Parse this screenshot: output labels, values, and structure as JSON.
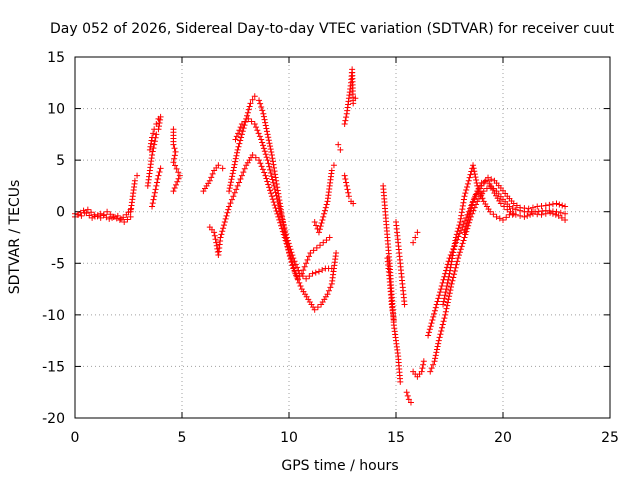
{
  "chart_data": {
    "type": "scatter",
    "title": "Day 052 of 2026, Sidereal Day-to-day VTEC variation (SDTVAR) for receiver cuut",
    "xlabel": "GPS time / hours",
    "ylabel": "SDTVAR / TECUs",
    "xlim": [
      0,
      25
    ],
    "ylim": [
      -20,
      15
    ],
    "xticks": [
      "0",
      "5",
      "10",
      "15",
      "20",
      "25"
    ],
    "yticks": [
      "-20",
      "-15",
      "-10",
      "-5",
      "0",
      "5",
      "10",
      "15"
    ],
    "grid": true,
    "marker": "+",
    "color": "#ff0000",
    "series": [
      {
        "name": "arc-1",
        "points": [
          [
            0.0,
            -0.2
          ],
          [
            0.3,
            -0.4
          ],
          [
            0.6,
            0.2
          ],
          [
            0.9,
            -0.3
          ],
          [
            1.2,
            -0.6
          ],
          [
            1.5,
            0.0
          ],
          [
            1.8,
            -0.5
          ],
          [
            2.1,
            -0.8
          ],
          [
            2.4,
            -0.3
          ],
          [
            2.6,
            0.2
          ]
        ]
      },
      {
        "name": "arc-2",
        "points": [
          [
            0.0,
            -0.5
          ],
          [
            0.4,
            0.1
          ],
          [
            0.8,
            -0.6
          ],
          [
            1.2,
            -0.2
          ],
          [
            1.6,
            -0.7
          ],
          [
            2.0,
            -0.4
          ],
          [
            2.3,
            -1.0
          ],
          [
            2.6,
            -0.5
          ]
        ]
      },
      {
        "name": "arc-3",
        "points": [
          [
            2.6,
            0.0
          ],
          [
            2.7,
            1.5
          ],
          [
            2.8,
            3.0
          ],
          [
            2.9,
            3.5
          ]
        ]
      },
      {
        "name": "arc-4",
        "points": [
          [
            3.4,
            2.5
          ],
          [
            3.5,
            4.0
          ],
          [
            3.6,
            5.5
          ],
          [
            3.7,
            6.5
          ],
          [
            3.8,
            7.5
          ],
          [
            3.9,
            8.0
          ],
          [
            4.0,
            9.2
          ]
        ]
      },
      {
        "name": "arc-5",
        "points": [
          [
            3.5,
            6.0
          ],
          [
            3.6,
            7.2
          ],
          [
            3.7,
            8.0
          ],
          [
            3.8,
            8.5
          ],
          [
            3.9,
            9.0
          ]
        ]
      },
      {
        "name": "arc-6",
        "points": [
          [
            3.6,
            0.5
          ],
          [
            3.7,
            1.5
          ],
          [
            3.8,
            2.5
          ],
          [
            3.9,
            3.5
          ],
          [
            4.0,
            4.2
          ]
        ]
      },
      {
        "name": "arc-7",
        "points": [
          [
            4.6,
            8.0
          ],
          [
            4.6,
            6.5
          ],
          [
            4.7,
            5.8
          ],
          [
            4.6,
            4.8
          ],
          [
            4.9,
            3.5
          ],
          [
            4.6,
            2.0
          ]
        ]
      },
      {
        "name": "arc-8",
        "points": [
          [
            6.0,
            2.0
          ],
          [
            6.3,
            3.0
          ],
          [
            6.5,
            4.0
          ],
          [
            6.7,
            4.5
          ],
          [
            6.9,
            4.2
          ]
        ]
      },
      {
        "name": "arc-9",
        "points": [
          [
            6.3,
            -1.5
          ],
          [
            6.5,
            -2.0
          ],
          [
            6.6,
            -3.0
          ],
          [
            6.7,
            -4.2
          ],
          [
            6.8,
            -2.5
          ],
          [
            7.0,
            -1.0
          ],
          [
            7.2,
            0.5
          ],
          [
            7.4,
            1.5
          ],
          [
            7.6,
            2.5
          ],
          [
            7.8,
            3.5
          ],
          [
            8.0,
            4.5
          ],
          [
            8.3,
            5.5
          ],
          [
            8.6,
            5.0
          ],
          [
            8.9,
            3.5
          ],
          [
            9.2,
            1.5
          ],
          [
            9.5,
            -0.5
          ],
          [
            9.8,
            -2.5
          ],
          [
            10.1,
            -4.5
          ],
          [
            10.3,
            -6.0
          ],
          [
            10.6,
            -7.5
          ],
          [
            10.9,
            -8.5
          ],
          [
            11.2,
            -9.5
          ],
          [
            11.5,
            -9.0
          ],
          [
            11.8,
            -8.0
          ],
          [
            12.0,
            -7.0
          ],
          [
            12.2,
            -4.0
          ]
        ]
      },
      {
        "name": "arc-10",
        "points": [
          [
            7.2,
            2.0
          ],
          [
            7.4,
            4.0
          ],
          [
            7.6,
            6.0
          ],
          [
            7.8,
            7.5
          ],
          [
            8.0,
            9.0
          ],
          [
            8.2,
            10.5
          ],
          [
            8.4,
            11.2
          ],
          [
            8.6,
            10.8
          ],
          [
            8.8,
            9.5
          ],
          [
            9.0,
            7.5
          ],
          [
            9.2,
            5.5
          ],
          [
            9.4,
            3.0
          ],
          [
            9.6,
            0.5
          ],
          [
            9.8,
            -2.0
          ],
          [
            10.0,
            -4.0
          ],
          [
            10.2,
            -5.5
          ],
          [
            10.4,
            -6.5
          ],
          [
            10.6,
            -6.0
          ],
          [
            10.8,
            -5.0
          ],
          [
            11.0,
            -4.0
          ],
          [
            11.3,
            -3.5
          ],
          [
            11.6,
            -3.0
          ],
          [
            11.9,
            -2.5
          ]
        ]
      },
      {
        "name": "arc-11",
        "points": [
          [
            7.5,
            7.0
          ],
          [
            7.8,
            8.5
          ],
          [
            8.1,
            9.0
          ],
          [
            8.4,
            8.5
          ],
          [
            8.7,
            7.0
          ],
          [
            9.0,
            5.0
          ],
          [
            9.3,
            2.5
          ],
          [
            9.6,
            0.0
          ],
          [
            9.9,
            -2.5
          ],
          [
            10.2,
            -4.5
          ],
          [
            10.5,
            -6.0
          ],
          [
            10.8,
            -6.5
          ],
          [
            11.1,
            -6.0
          ],
          [
            11.4,
            -5.8
          ],
          [
            11.7,
            -5.5
          ],
          [
            12.0,
            -5.5
          ]
        ]
      },
      {
        "name": "arc-12",
        "points": [
          [
            11.2,
            -1.0
          ],
          [
            11.4,
            -2.0
          ],
          [
            11.6,
            -0.5
          ],
          [
            11.8,
            1.0
          ],
          [
            11.9,
            2.5
          ],
          [
            12.0,
            4.0
          ],
          [
            12.1,
            4.5
          ]
        ]
      },
      {
        "name": "arc-13",
        "points": [
          [
            12.3,
            6.5
          ],
          [
            12.4,
            6.0
          ]
        ]
      },
      {
        "name": "arc-14",
        "points": [
          [
            12.6,
            3.5
          ],
          [
            12.7,
            2.5
          ],
          [
            12.8,
            1.5
          ],
          [
            12.9,
            1.0
          ],
          [
            13.0,
            0.8
          ]
        ]
      },
      {
        "name": "arc-15",
        "points": [
          [
            12.6,
            8.5
          ],
          [
            12.7,
            9.5
          ],
          [
            12.8,
            11.0
          ],
          [
            12.9,
            12.5
          ],
          [
            12.95,
            13.8
          ],
          [
            13.0,
            10.5
          ],
          [
            13.1,
            11.0
          ]
        ]
      },
      {
        "name": "arc-16",
        "points": [
          [
            14.4,
            2.5
          ],
          [
            14.5,
            0.0
          ],
          [
            14.6,
            -2.5
          ],
          [
            14.7,
            -5.0
          ],
          [
            14.8,
            -8.0
          ],
          [
            14.9,
            -11.0
          ],
          [
            15.0,
            -12.5
          ],
          [
            15.1,
            -14.0
          ],
          [
            15.2,
            -16.5
          ]
        ]
      },
      {
        "name": "arc-17",
        "points": [
          [
            14.6,
            -4.5
          ],
          [
            14.7,
            -6.5
          ],
          [
            14.8,
            -9.0
          ],
          [
            14.9,
            -10.5
          ]
        ]
      },
      {
        "name": "arc-18",
        "points": [
          [
            15.0,
            -1.0
          ],
          [
            15.1,
            -3.0
          ],
          [
            15.2,
            -5.0
          ],
          [
            15.3,
            -7.0
          ],
          [
            15.4,
            -9.0
          ]
        ]
      },
      {
        "name": "arc-19",
        "points": [
          [
            15.5,
            -17.5
          ],
          [
            15.6,
            -18.2
          ],
          [
            15.7,
            -18.5
          ]
        ]
      },
      {
        "name": "arc-20",
        "points": [
          [
            15.8,
            -3.0
          ],
          [
            15.9,
            -2.5
          ],
          [
            16.0,
            -2.0
          ]
        ]
      },
      {
        "name": "arc-21",
        "points": [
          [
            15.8,
            -15.5
          ],
          [
            16.0,
            -16.0
          ],
          [
            16.2,
            -15.5
          ],
          [
            16.3,
            -14.5
          ]
        ]
      },
      {
        "name": "arc-22",
        "points": [
          [
            16.6,
            -15.5
          ],
          [
            16.8,
            -14.5
          ],
          [
            17.0,
            -12.5
          ],
          [
            17.3,
            -10.0
          ],
          [
            17.6,
            -7.0
          ],
          [
            17.9,
            -4.5
          ],
          [
            18.2,
            -2.5
          ],
          [
            18.5,
            -0.5
          ],
          [
            18.8,
            1.0
          ],
          [
            19.1,
            2.0
          ],
          [
            19.4,
            2.5
          ],
          [
            19.7,
            2.0
          ],
          [
            20.0,
            1.2
          ],
          [
            20.3,
            0.5
          ],
          [
            20.6,
            0.2
          ],
          [
            21.0,
            0.0
          ],
          [
            21.5,
            0.0
          ],
          [
            22.0,
            0.1
          ],
          [
            22.5,
            0.0
          ],
          [
            22.9,
            -0.2
          ]
        ]
      },
      {
        "name": "arc-23",
        "points": [
          [
            16.5,
            -12.0
          ],
          [
            16.7,
            -10.5
          ],
          [
            16.9,
            -9.0
          ],
          [
            17.1,
            -7.5
          ],
          [
            17.3,
            -6.0
          ],
          [
            17.5,
            -4.5
          ],
          [
            17.8,
            -3.0
          ],
          [
            18.1,
            -1.5
          ],
          [
            18.4,
            0.0
          ],
          [
            18.7,
            1.5
          ],
          [
            19.0,
            2.5
          ],
          [
            19.3,
            3.3
          ],
          [
            19.6,
            3.0
          ],
          [
            19.9,
            2.3
          ],
          [
            20.2,
            1.5
          ],
          [
            20.5,
            0.8
          ],
          [
            20.8,
            0.4
          ],
          [
            21.2,
            0.3
          ],
          [
            21.6,
            0.5
          ],
          [
            22.0,
            0.6
          ],
          [
            22.5,
            0.8
          ],
          [
            22.9,
            0.5
          ]
        ]
      },
      {
        "name": "arc-24",
        "points": [
          [
            17.2,
            -9.0
          ],
          [
            17.5,
            -6.0
          ],
          [
            17.8,
            -2.5
          ],
          [
            18.0,
            -1.0
          ],
          [
            18.2,
            1.5
          ],
          [
            18.4,
            3.0
          ],
          [
            18.6,
            4.5
          ],
          [
            18.8,
            2.5
          ],
          [
            19.1,
            1.0
          ],
          [
            19.4,
            0.0
          ],
          [
            19.7,
            -0.5
          ],
          [
            20.0,
            -0.8
          ],
          [
            20.3,
            -0.3
          ],
          [
            20.6,
            -0.3
          ],
          [
            21.0,
            -0.5
          ],
          [
            21.4,
            -0.2
          ],
          [
            21.8,
            -0.3
          ],
          [
            22.2,
            -0.1
          ],
          [
            22.6,
            -0.4
          ],
          [
            22.9,
            -0.8
          ]
        ]
      },
      {
        "name": "arc-25",
        "points": [
          [
            18.2,
            -2.0
          ],
          [
            18.4,
            -0.5
          ],
          [
            18.6,
            1.0
          ],
          [
            18.8,
            2.0
          ],
          [
            19.0,
            2.8
          ],
          [
            19.3,
            3.0
          ],
          [
            19.6,
            1.8
          ],
          [
            19.9,
            0.8
          ],
          [
            20.2,
            0.2
          ],
          [
            20.5,
            -0.2
          ]
        ]
      }
    ]
  }
}
